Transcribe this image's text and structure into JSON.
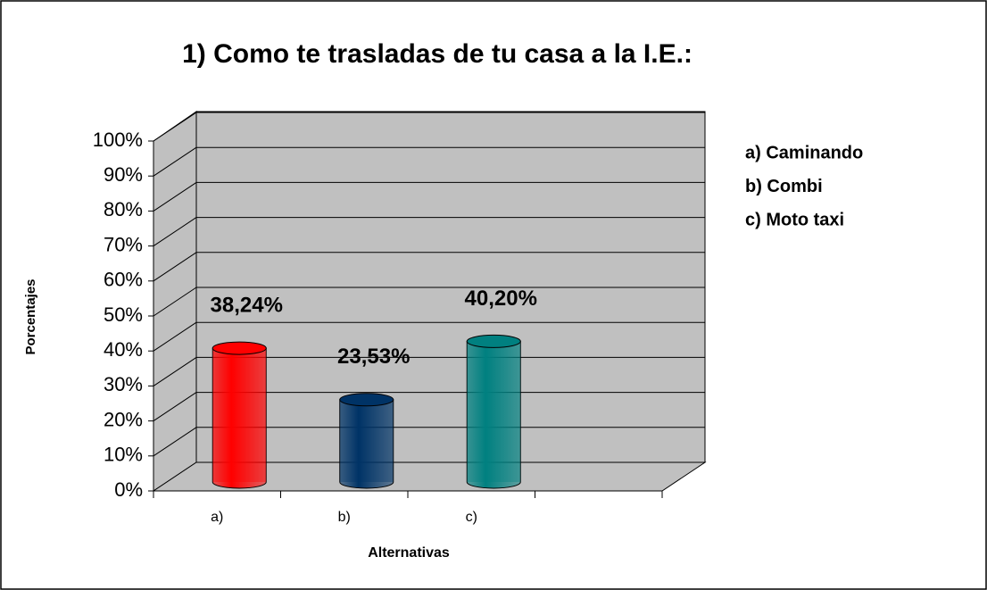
{
  "chart_data": {
    "type": "bar3d",
    "title": "1) Como te trasladas de tu casa a la I.E.:",
    "x_label": "Alternativas",
    "y_label": "Porcentajes",
    "categories": [
      "a)",
      "b)",
      "c)",
      null
    ],
    "values": [
      38.24,
      23.53,
      40.2,
      null
    ],
    "value_labels": [
      "38,24%",
      "23,53%",
      "40,20%",
      null
    ],
    "colors": [
      "#ff0000",
      "#003366",
      "#008080"
    ],
    "legend": [
      "a) Caminando",
      "b) Combi",
      "c) Moto taxi"
    ],
    "ylim": [
      0,
      100
    ],
    "yticks": [
      {
        "value": 0,
        "label": "0%"
      },
      {
        "value": 10,
        "label": "10%"
      },
      {
        "value": 20,
        "label": "20%"
      },
      {
        "value": 30,
        "label": "30%"
      },
      {
        "value": 40,
        "label": "40%"
      },
      {
        "value": 50,
        "label": "50%"
      },
      {
        "value": 60,
        "label": "60%"
      },
      {
        "value": 70,
        "label": "70%"
      },
      {
        "value": 80,
        "label": "80%"
      },
      {
        "value": 90,
        "label": "90%"
      },
      {
        "value": 100,
        "label": "100%"
      }
    ],
    "grid": true
  }
}
